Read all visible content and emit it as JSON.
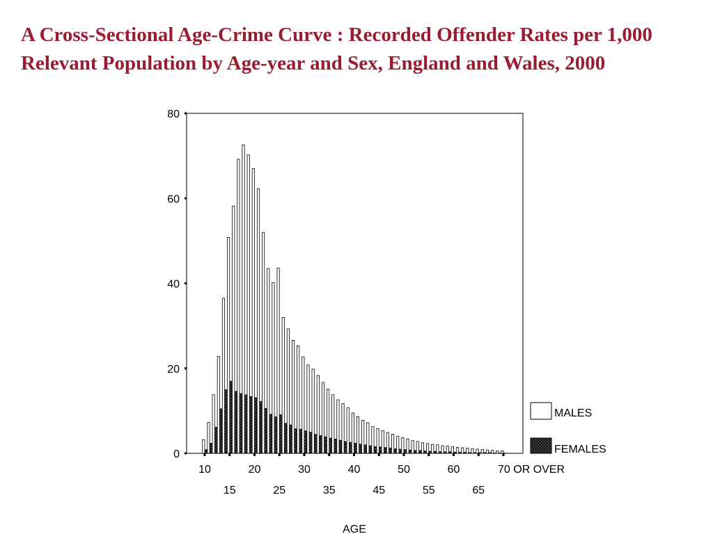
{
  "slide": {
    "title": "A Cross-Sectional Age-Crime Curve : Recorded Offender Rates per 1,000 Relevant Population by Age-year and Sex, England and Wales, 2000"
  },
  "chart_data": {
    "type": "bar",
    "title": "A Cross-Sectional Age-Crime Curve : Recorded Offender Rates per 1,000 Relevant Population by Age-year and Sex, England and Wales, 2000",
    "xlabel": "AGE",
    "ylabel": "",
    "ylim": [
      0,
      80
    ],
    "yticks": [
      0,
      20,
      40,
      60,
      80
    ],
    "x_tick_labels_upper": [
      "10",
      "20",
      "30",
      "40",
      "50",
      "60",
      "70 OR OVER"
    ],
    "x_tick_labels_lower": [
      "15",
      "25",
      "35",
      "45",
      "55",
      "65"
    ],
    "x_tick_label_upper_ages": [
      10,
      20,
      30,
      40,
      50,
      60,
      70
    ],
    "x_tick_label_lower_ages": [
      15,
      25,
      35,
      45,
      55,
      65
    ],
    "grid": false,
    "legend_position": "right",
    "categories": [
      10,
      11,
      12,
      13,
      14,
      15,
      16,
      17,
      18,
      19,
      20,
      21,
      22,
      23,
      24,
      25,
      26,
      27,
      28,
      29,
      30,
      31,
      32,
      33,
      34,
      35,
      36,
      37,
      38,
      39,
      40,
      41,
      42,
      43,
      44,
      45,
      46,
      47,
      48,
      49,
      50,
      51,
      52,
      53,
      54,
      55,
      56,
      57,
      58,
      59,
      60,
      61,
      62,
      63,
      64,
      65,
      66,
      67,
      68,
      69,
      70
    ],
    "series": [
      {
        "name": "MALES",
        "pattern": "outline",
        "values": [
          3.2,
          7.3,
          13.8,
          22.8,
          36.5,
          50.8,
          58.2,
          69.2,
          72.6,
          70.2,
          67.0,
          62.3,
          52.0,
          43.5,
          40.2,
          43.6,
          32.0,
          29.3,
          26.6,
          25.3,
          22.7,
          20.8,
          19.8,
          18.3,
          16.7,
          15.1,
          13.8,
          12.6,
          11.7,
          10.7,
          9.5,
          8.6,
          7.8,
          7.2,
          6.3,
          5.8,
          5.3,
          4.9,
          4.5,
          4.0,
          3.7,
          3.4,
          3.0,
          2.8,
          2.5,
          2.3,
          2.1,
          2.0,
          1.8,
          1.7,
          1.6,
          1.4,
          1.3,
          1.2,
          1.1,
          1.0,
          0.9,
          0.8,
          0.7,
          0.6,
          0.6
        ]
      },
      {
        "name": "FEMALES",
        "pattern": "hatched",
        "values": [
          0.9,
          2.4,
          6.2,
          10.5,
          15.0,
          17.0,
          14.6,
          14.1,
          13.8,
          13.4,
          13.1,
          12.2,
          10.6,
          9.2,
          8.6,
          9.1,
          7.1,
          6.7,
          5.8,
          5.7,
          5.3,
          5.0,
          4.5,
          4.2,
          3.9,
          3.6,
          3.4,
          3.1,
          2.8,
          2.6,
          2.4,
          2.2,
          2.0,
          1.8,
          1.6,
          1.5,
          1.4,
          1.3,
          1.1,
          1.0,
          0.9,
          0.8,
          0.7,
          0.7,
          0.6,
          0.5,
          0.5,
          0.4,
          0.4,
          0.4,
          0.3,
          0.3,
          0.3,
          0.2,
          0.2,
          0.2,
          0.2,
          0.2,
          0.1,
          0.1,
          0.1
        ]
      }
    ]
  }
}
